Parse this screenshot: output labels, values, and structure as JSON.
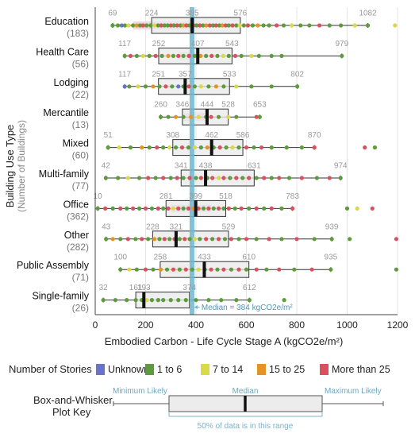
{
  "chart_data": {
    "type": "box",
    "xlabel": "Embodied Carbon - Life Cycle Stage A (kgCO2e/m²)",
    "ylabel": "Building Use Type",
    "ylabel_sub": "(Number of Buildings)",
    "xlim": [
      0,
      1200
    ],
    "xticks": [
      "0",
      "200",
      "400",
      "600",
      "800",
      "1000",
      "1200"
    ],
    "grid": "vertical",
    "median_line": {
      "value": 384,
      "label": "Median = 384 kgCO2e/m²",
      "color": "#6fb6cf"
    },
    "categories": [
      {
        "name": "Education",
        "count": "(183)",
        "min": 69,
        "q1": 224,
        "median": 385,
        "q3": 576,
        "max": 1082
      },
      {
        "name": "Health Care",
        "count": "(56)",
        "min": 117,
        "q1": 252,
        "median": 407,
        "q3": 543,
        "max": 979
      },
      {
        "name": "Lodging",
        "count": "(22)",
        "min": 117,
        "q1": 251,
        "median": 357,
        "q3": 533,
        "max": 802
      },
      {
        "name": "Mercantile",
        "count": "(13)",
        "min": 260,
        "q1": 346,
        "median": 444,
        "q3": 528,
        "max": 653
      },
      {
        "name": "Mixed",
        "count": "(60)",
        "min": 51,
        "q1": 308,
        "median": 462,
        "q3": 586,
        "max": 870
      },
      {
        "name": "Multi-family",
        "count": "(77)",
        "min": 42,
        "q1": 341,
        "median": 438,
        "q3": 631,
        "max": 974
      },
      {
        "name": "Office",
        "count": "(362)",
        "min": 10,
        "q1": 281,
        "median": 399,
        "q3": 518,
        "max": 783
      },
      {
        "name": "Other",
        "count": "(282)",
        "min": 43,
        "q1": 228,
        "median": 321,
        "q3": 529,
        "max": 939
      },
      {
        "name": "Public Assembly",
        "count": "(71)",
        "min": 100,
        "q1": 258,
        "median": 433,
        "q3": 610,
        "max": 935
      },
      {
        "name": "Single-family",
        "count": "(26)",
        "min": 32,
        "q1": 161,
        "median": 193,
        "q3": 374,
        "max": 612
      }
    ],
    "legend": {
      "title": "Number of Stories",
      "items": [
        {
          "label": "Unknown",
          "color": "#6a73c9"
        },
        {
          "label": "1 to 6",
          "color": "#5e9b3c"
        },
        {
          "label": "7 to 14",
          "color": "#d9d94b"
        },
        {
          "label": "15 to 25",
          "color": "#e39424"
        },
        {
          "label": "More than 25",
          "color": "#d9505e"
        }
      ]
    },
    "key": {
      "title_line1": "Box-and-Whisker",
      "title_line2": "Plot Key",
      "min_label": "Minimum Likely",
      "median_label": "Median",
      "max_label": "Maximum Likely",
      "range_label": "50% of data is in this range"
    },
    "stripe_highlights": [
      {
        "category": 0,
        "from": 150,
        "to": 420,
        "color": "#f2d3db"
      },
      {
        "category": 1,
        "from": 330,
        "to": 400,
        "color": "#f2d3db"
      },
      {
        "category": 3,
        "from": 350,
        "to": 450,
        "color": "#f2d3db"
      },
      {
        "category": 6,
        "from": 300,
        "to": 460,
        "color": "#f2d3db"
      },
      {
        "category": 8,
        "from": 290,
        "to": 360,
        "color": "#f6e3c6"
      }
    ],
    "points": [
      [
        0,
        [
          [
            69,
            1
          ],
          [
            90,
            1
          ],
          [
            105,
            0
          ],
          [
            118,
            1
          ],
          [
            132,
            2
          ],
          [
            150,
            1
          ],
          [
            165,
            3
          ],
          [
            178,
            1
          ],
          [
            190,
            4
          ],
          [
            204,
            1
          ],
          [
            220,
            1
          ],
          [
            236,
            2
          ],
          [
            250,
            1
          ],
          [
            262,
            4
          ],
          [
            275,
            1
          ],
          [
            288,
            1
          ],
          [
            300,
            4
          ],
          [
            312,
            1
          ],
          [
            325,
            4
          ],
          [
            338,
            1
          ],
          [
            350,
            3
          ],
          [
            362,
            4
          ],
          [
            374,
            1
          ],
          [
            390,
            4
          ],
          [
            402,
            1
          ],
          [
            415,
            4
          ],
          [
            428,
            1
          ],
          [
            441,
            3
          ],
          [
            455,
            4
          ],
          [
            468,
            1
          ],
          [
            480,
            4
          ],
          [
            493,
            1
          ],
          [
            505,
            3
          ],
          [
            518,
            4
          ],
          [
            530,
            1
          ],
          [
            545,
            4
          ],
          [
            560,
            1
          ],
          [
            574,
            2
          ],
          [
            590,
            1
          ],
          [
            606,
            4
          ],
          [
            625,
            1
          ],
          [
            645,
            3
          ],
          [
            668,
            1
          ],
          [
            690,
            1
          ],
          [
            720,
            4
          ],
          [
            748,
            1
          ],
          [
            780,
            2
          ],
          [
            815,
            1
          ],
          [
            850,
            1
          ],
          [
            890,
            4
          ],
          [
            930,
            1
          ],
          [
            975,
            1
          ],
          [
            1030,
            2
          ],
          [
            1082,
            1
          ],
          [
            1190,
            2
          ]
        ]
      ],
      [
        1,
        [
          [
            117,
            1
          ],
          [
            140,
            4
          ],
          [
            165,
            1
          ],
          [
            190,
            2
          ],
          [
            215,
            1
          ],
          [
            240,
            4
          ],
          [
            265,
            1
          ],
          [
            290,
            3
          ],
          [
            310,
            1
          ],
          [
            330,
            4
          ],
          [
            350,
            1
          ],
          [
            372,
            4
          ],
          [
            395,
            1
          ],
          [
            418,
            3
          ],
          [
            440,
            1
          ],
          [
            462,
            4
          ],
          [
            485,
            1
          ],
          [
            508,
            2
          ],
          [
            530,
            1
          ],
          [
            556,
            4
          ],
          [
            580,
            1
          ],
          [
            620,
            2
          ],
          [
            650,
            1
          ],
          [
            700,
            1
          ],
          [
            740,
            1
          ],
          [
            979,
            1
          ]
        ]
      ],
      [
        2,
        [
          [
            117,
            0
          ],
          [
            135,
            1
          ],
          [
            170,
            2
          ],
          [
            200,
            1
          ],
          [
            230,
            3
          ],
          [
            255,
            1
          ],
          [
            280,
            4
          ],
          [
            305,
            1
          ],
          [
            330,
            0
          ],
          [
            350,
            1
          ],
          [
            372,
            4
          ],
          [
            395,
            1
          ],
          [
            420,
            2
          ],
          [
            450,
            1
          ],
          [
            480,
            3
          ],
          [
            510,
            1
          ],
          [
            560,
            2
          ],
          [
            620,
            1
          ],
          [
            700,
            1
          ],
          [
            802,
            1
          ]
        ]
      ],
      [
        3,
        [
          [
            260,
            1
          ],
          [
            290,
            1
          ],
          [
            320,
            3
          ],
          [
            350,
            1
          ],
          [
            380,
            3
          ],
          [
            410,
            2
          ],
          [
            440,
            1
          ],
          [
            460,
            4
          ],
          [
            490,
            1
          ],
          [
            528,
            2
          ],
          [
            560,
            1
          ],
          [
            640,
            4
          ],
          [
            653,
            1
          ]
        ]
      ],
      [
        4,
        [
          [
            51,
            1
          ],
          [
            95,
            2
          ],
          [
            140,
            1
          ],
          [
            185,
            3
          ],
          [
            215,
            1
          ],
          [
            245,
            4
          ],
          [
            270,
            1
          ],
          [
            295,
            2
          ],
          [
            320,
            1
          ],
          [
            345,
            4
          ],
          [
            370,
            1
          ],
          [
            395,
            2
          ],
          [
            420,
            1
          ],
          [
            445,
            3
          ],
          [
            470,
            1
          ],
          [
            495,
            4
          ],
          [
            520,
            1
          ],
          [
            545,
            2
          ],
          [
            570,
            1
          ],
          [
            600,
            4
          ],
          [
            630,
            1
          ],
          [
            660,
            4
          ],
          [
            700,
            1
          ],
          [
            760,
            1
          ],
          [
            820,
            1
          ],
          [
            870,
            4
          ],
          [
            1070,
            4
          ],
          [
            1110,
            1
          ]
        ]
      ],
      [
        5,
        [
          [
            42,
            1
          ],
          [
            90,
            1
          ],
          [
            130,
            2
          ],
          [
            175,
            1
          ],
          [
            210,
            4
          ],
          [
            240,
            1
          ],
          [
            270,
            4
          ],
          [
            300,
            1
          ],
          [
            325,
            4
          ],
          [
            350,
            1
          ],
          [
            375,
            4
          ],
          [
            400,
            1
          ],
          [
            420,
            4
          ],
          [
            445,
            1
          ],
          [
            465,
            4
          ],
          [
            490,
            2
          ],
          [
            510,
            4
          ],
          [
            535,
            1
          ],
          [
            560,
            4
          ],
          [
            585,
            1
          ],
          [
            610,
            4
          ],
          [
            640,
            1
          ],
          [
            670,
            4
          ],
          [
            700,
            1
          ],
          [
            730,
            4
          ],
          [
            770,
            1
          ],
          [
            820,
            4
          ],
          [
            880,
            1
          ],
          [
            930,
            4
          ],
          [
            974,
            1
          ]
        ]
      ],
      [
        6,
        [
          [
            10,
            1
          ],
          [
            40,
            4
          ],
          [
            70,
            1
          ],
          [
            100,
            4
          ],
          [
            125,
            1
          ],
          [
            150,
            4
          ],
          [
            175,
            1
          ],
          [
            200,
            4
          ],
          [
            225,
            1
          ],
          [
            250,
            4
          ],
          [
            270,
            1
          ],
          [
            290,
            4
          ],
          [
            310,
            2
          ],
          [
            330,
            4
          ],
          [
            350,
            1
          ],
          [
            370,
            4
          ],
          [
            390,
            3
          ],
          [
            410,
            4
          ],
          [
            430,
            1
          ],
          [
            450,
            4
          ],
          [
            470,
            1
          ],
          [
            490,
            4
          ],
          [
            510,
            1
          ],
          [
            530,
            4
          ],
          [
            555,
            1
          ],
          [
            580,
            4
          ],
          [
            610,
            1
          ],
          [
            640,
            4
          ],
          [
            670,
            1
          ],
          [
            700,
            4
          ],
          [
            740,
            1
          ],
          [
            783,
            4
          ],
          [
            1000,
            1
          ],
          [
            1040,
            2
          ],
          [
            1100,
            4
          ]
        ]
      ],
      [
        7,
        [
          [
            43,
            1
          ],
          [
            70,
            3
          ],
          [
            100,
            1
          ],
          [
            130,
            4
          ],
          [
            160,
            1
          ],
          [
            185,
            4
          ],
          [
            210,
            1
          ],
          [
            235,
            3
          ],
          [
            255,
            1
          ],
          [
            275,
            4
          ],
          [
            295,
            1
          ],
          [
            315,
            4
          ],
          [
            335,
            1
          ],
          [
            355,
            4
          ],
          [
            375,
            1
          ],
          [
            395,
            2
          ],
          [
            415,
            1
          ],
          [
            440,
            4
          ],
          [
            465,
            1
          ],
          [
            490,
            4
          ],
          [
            515,
            1
          ],
          [
            540,
            4
          ],
          [
            570,
            1
          ],
          [
            600,
            4
          ],
          [
            640,
            1
          ],
          [
            690,
            4
          ],
          [
            740,
            1
          ],
          [
            800,
            4
          ],
          [
            870,
            1
          ],
          [
            939,
            1
          ],
          [
            1010,
            1
          ],
          [
            1195,
            4
          ]
        ]
      ],
      [
        8,
        [
          [
            100,
            1
          ],
          [
            135,
            2
          ],
          [
            165,
            1
          ],
          [
            200,
            4
          ],
          [
            230,
            1
          ],
          [
            260,
            3
          ],
          [
            285,
            1
          ],
          [
            310,
            4
          ],
          [
            335,
            1
          ],
          [
            360,
            4
          ],
          [
            385,
            1
          ],
          [
            410,
            2
          ],
          [
            435,
            1
          ],
          [
            460,
            4
          ],
          [
            485,
            1
          ],
          [
            510,
            4
          ],
          [
            540,
            1
          ],
          [
            570,
            4
          ],
          [
            600,
            1
          ],
          [
            640,
            4
          ],
          [
            680,
            1
          ],
          [
            730,
            4
          ],
          [
            790,
            1
          ],
          [
            860,
            4
          ],
          [
            935,
            1
          ],
          [
            1195,
            1
          ]
        ]
      ],
      [
        9,
        [
          [
            32,
            1
          ],
          [
            80,
            1
          ],
          [
            125,
            1
          ],
          [
            161,
            1
          ],
          [
            185,
            1
          ],
          [
            205,
            2
          ],
          [
            225,
            1
          ],
          [
            250,
            1
          ],
          [
            270,
            1
          ],
          [
            300,
            1
          ],
          [
            330,
            1
          ],
          [
            360,
            1
          ],
          [
            400,
            1
          ],
          [
            450,
            1
          ],
          [
            500,
            1
          ],
          [
            560,
            1
          ],
          [
            612,
            1
          ],
          [
            750,
            1
          ]
        ]
      ]
    ]
  }
}
